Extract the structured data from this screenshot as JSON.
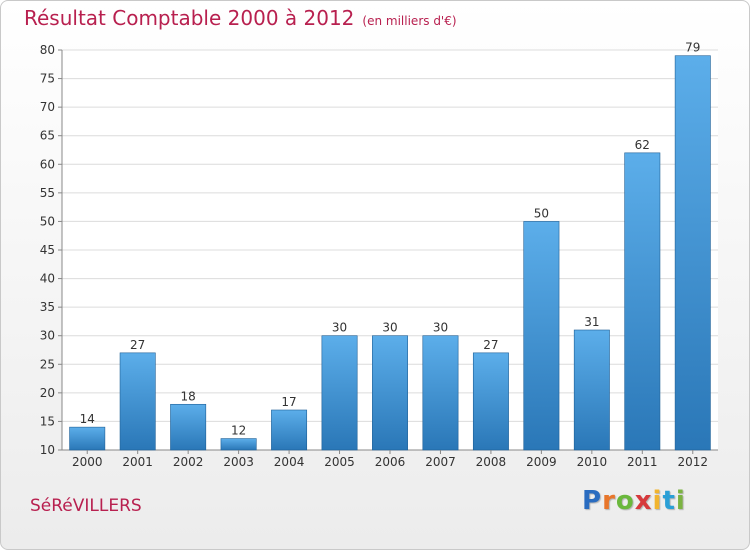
{
  "header": {
    "title": "Résultat Comptable 2000 à 2012",
    "subtitle": "(en milliers d'€)"
  },
  "footer": {
    "commune": "SéRéVILLERS",
    "logo_letters": [
      "P",
      "r",
      "o",
      "x",
      "i",
      "t",
      "i"
    ],
    "logo_colors": [
      "#2a6cc0",
      "#e8762b",
      "#6ab83c",
      "#d6393c",
      "#f1b42f",
      "#2a9fd6",
      "#7cb342"
    ]
  },
  "colors": {
    "accent": "#b8204f",
    "bar_top": "#5caeea",
    "bar_bottom": "#2a77b7"
  },
  "chart_data": {
    "type": "bar",
    "categories": [
      "2000",
      "2001",
      "2002",
      "2003",
      "2004",
      "2005",
      "2006",
      "2007",
      "2008",
      "2009",
      "2010",
      "2011",
      "2012"
    ],
    "values": [
      14,
      27,
      18,
      12,
      17,
      30,
      30,
      30,
      27,
      50,
      31,
      62,
      79
    ],
    "ylim": [
      10,
      80
    ],
    "yticks": [
      10,
      15,
      20,
      25,
      30,
      35,
      40,
      45,
      50,
      55,
      60,
      65,
      70,
      75,
      80
    ],
    "grid": true,
    "xlabel": "",
    "ylabel": ""
  }
}
